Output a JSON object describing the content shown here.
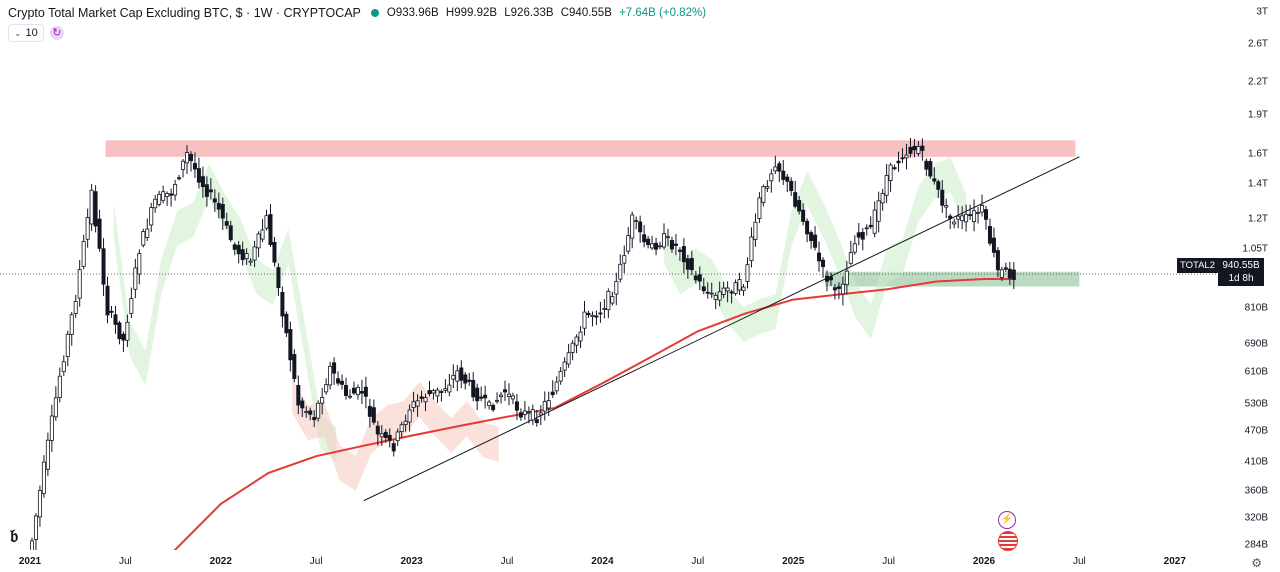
{
  "legend": {
    "title": "Crypto Total Market Cap Excluding BTC, $ · 1W · CRYPTOCAP",
    "open": "O933.96B",
    "high": "H999.92B",
    "low": "L926.33B",
    "close": "C940.55B",
    "change": "+7.64B (+0.82%)",
    "status_color": "#089981"
  },
  "indicators": {
    "count": "10"
  },
  "symbol_badge": "TOTAL2",
  "price_badge": {
    "price": "940.55B",
    "countdown": "1d 8h"
  },
  "y_ticks": [
    "3T",
    "2.6T",
    "2.2T",
    "1.9T",
    "1.6T",
    "1.4T",
    "1.2T",
    "1.05T",
    "810B",
    "690B",
    "610B",
    "530B",
    "470B",
    "410B",
    "360B",
    "320B",
    "284B"
  ],
  "x_ticks": [
    {
      "label": "2021",
      "year": true
    },
    {
      "label": "Jul",
      "year": false
    },
    {
      "label": "2022",
      "year": true
    },
    {
      "label": "Jul",
      "year": false
    },
    {
      "label": "2023",
      "year": true
    },
    {
      "label": "Jul",
      "year": false
    },
    {
      "label": "2024",
      "year": true
    },
    {
      "label": "Jul",
      "year": false
    },
    {
      "label": "2025",
      "year": true
    },
    {
      "label": "Jul",
      "year": false
    },
    {
      "label": "2026",
      "year": true
    },
    {
      "label": "Jul",
      "year": false
    },
    {
      "label": "2027",
      "year": true
    }
  ],
  "colors": {
    "up": "#089981",
    "down": "#131722",
    "ma": "#e53935",
    "resistance_zone": "#f4a6a6",
    "support_zone": "#8fbf9a",
    "cloud_bull": "#c8ecc8",
    "cloud_bear": "#f8c8c0",
    "trendline": "#131722"
  },
  "chart_data": {
    "type": "candlestick",
    "title": "Crypto Total Market Cap Excluding BTC, $ · 1W · CRYPTOCAP",
    "y_scale": "log",
    "y_range": [
      270000000000.0,
      3100000000000.0
    ],
    "x_range": [
      "2021-01",
      "2027-01"
    ],
    "price_path": [
      [
        "2021-01",
        260000000000.0
      ],
      [
        "2021-02",
        400000000000.0
      ],
      [
        "2021-03",
        600000000000.0
      ],
      [
        "2021-04",
        850000000000.0
      ],
      [
        "2021-05",
        1350000000000.0
      ],
      [
        "2021-06",
        800000000000.0
      ],
      [
        "2021-07",
        700000000000.0
      ],
      [
        "2021-08",
        1050000000000.0
      ],
      [
        "2021-09",
        1300000000000.0
      ],
      [
        "2021-10",
        1350000000000.0
      ],
      [
        "2021-11",
        1600000000000.0
      ],
      [
        "2021-12",
        1400000000000.0
      ],
      [
        "2022-01",
        1250000000000.0
      ],
      [
        "2022-02",
        1050000000000.0
      ],
      [
        "2022-03",
        1000000000000.0
      ],
      [
        "2022-04",
        1200000000000.0
      ],
      [
        "2022-05",
        800000000000.0
      ],
      [
        "2022-06",
        530000000000.0
      ],
      [
        "2022-07",
        500000000000.0
      ],
      [
        "2022-08",
        620000000000.0
      ],
      [
        "2022-09",
        550000000000.0
      ],
      [
        "2022-10",
        560000000000.0
      ],
      [
        "2022-11",
        460000000000.0
      ],
      [
        "2022-12",
        440000000000.0
      ],
      [
        "2023-01",
        520000000000.0
      ],
      [
        "2023-02",
        550000000000.0
      ],
      [
        "2023-03",
        560000000000.0
      ],
      [
        "2023-04",
        610000000000.0
      ],
      [
        "2023-05",
        560000000000.0
      ],
      [
        "2023-06",
        520000000000.0
      ],
      [
        "2023-07",
        560000000000.0
      ],
      [
        "2023-08",
        510000000000.0
      ],
      [
        "2023-09",
        500000000000.0
      ],
      [
        "2023-10",
        560000000000.0
      ],
      [
        "2023-11",
        650000000000.0
      ],
      [
        "2023-12",
        780000000000.0
      ],
      [
        "2024-01",
        800000000000.0
      ],
      [
        "2024-02",
        900000000000.0
      ],
      [
        "2024-03",
        1200000000000.0
      ],
      [
        "2024-04",
        1050000000000.0
      ],
      [
        "2024-05",
        1100000000000.0
      ],
      [
        "2024-06",
        1050000000000.0
      ],
      [
        "2024-07",
        920000000000.0
      ],
      [
        "2024-08",
        850000000000.0
      ],
      [
        "2024-09",
        880000000000.0
      ],
      [
        "2024-10",
        900000000000.0
      ],
      [
        "2024-11",
        1300000000000.0
      ],
      [
        "2024-12",
        1550000000000.0
      ],
      [
        "2025-01",
        1350000000000.0
      ],
      [
        "2025-02",
        1150000000000.0
      ],
      [
        "2025-03",
        950000000000.0
      ],
      [
        "2025-04",
        860000000000.0
      ],
      [
        "2025-05",
        1100000000000.0
      ],
      [
        "2025-06",
        1150000000000.0
      ],
      [
        "2025-07",
        1450000000000.0
      ],
      [
        "2025-08",
        1600000000000.0
      ],
      [
        "2025-09",
        1650000000000.0
      ],
      [
        "2025-10",
        1400000000000.0
      ],
      [
        "2025-11",
        1200000000000.0
      ],
      [
        "2025-12",
        1200000000000.0
      ],
      [
        "2026-01",
        1250000000000.0
      ],
      [
        "2026-02",
        950000000000.0
      ],
      [
        "2026-03",
        940000000000.0
      ]
    ],
    "ma_path": [
      [
        "2021-10",
        275000000000.0
      ],
      [
        "2022-01",
        340000000000.0
      ],
      [
        "2022-04",
        390000000000.0
      ],
      [
        "2022-07",
        420000000000.0
      ],
      [
        "2022-10",
        440000000000.0
      ],
      [
        "2023-01",
        460000000000.0
      ],
      [
        "2023-04",
        480000000000.0
      ],
      [
        "2023-07",
        500000000000.0
      ],
      [
        "2023-10",
        520000000000.0
      ],
      [
        "2024-01",
        580000000000.0
      ],
      [
        "2024-04",
        650000000000.0
      ],
      [
        "2024-07",
        730000000000.0
      ],
      [
        "2024-10",
        790000000000.0
      ],
      [
        "2025-01",
        840000000000.0
      ],
      [
        "2025-04",
        860000000000.0
      ],
      [
        "2025-07",
        880000000000.0
      ],
      [
        "2025-10",
        910000000000.0
      ],
      [
        "2026-01",
        920000000000.0
      ],
      [
        "2026-03",
        920000000000.0
      ]
    ],
    "trendline": [
      [
        "2022-10",
        345000000000.0
      ],
      [
        "2026-07",
        1580000000000.0
      ]
    ],
    "resistance_zone": {
      "from": "2021-06",
      "to": "2026-07",
      "low": 1580000000000.0,
      "high": 1700000000000.0
    },
    "support_zone": {
      "from": "2025-03",
      "to": "2026-07",
      "low": 890000000000.0,
      "high": 950000000000.0
    },
    "last_price": 940550000000.0
  }
}
